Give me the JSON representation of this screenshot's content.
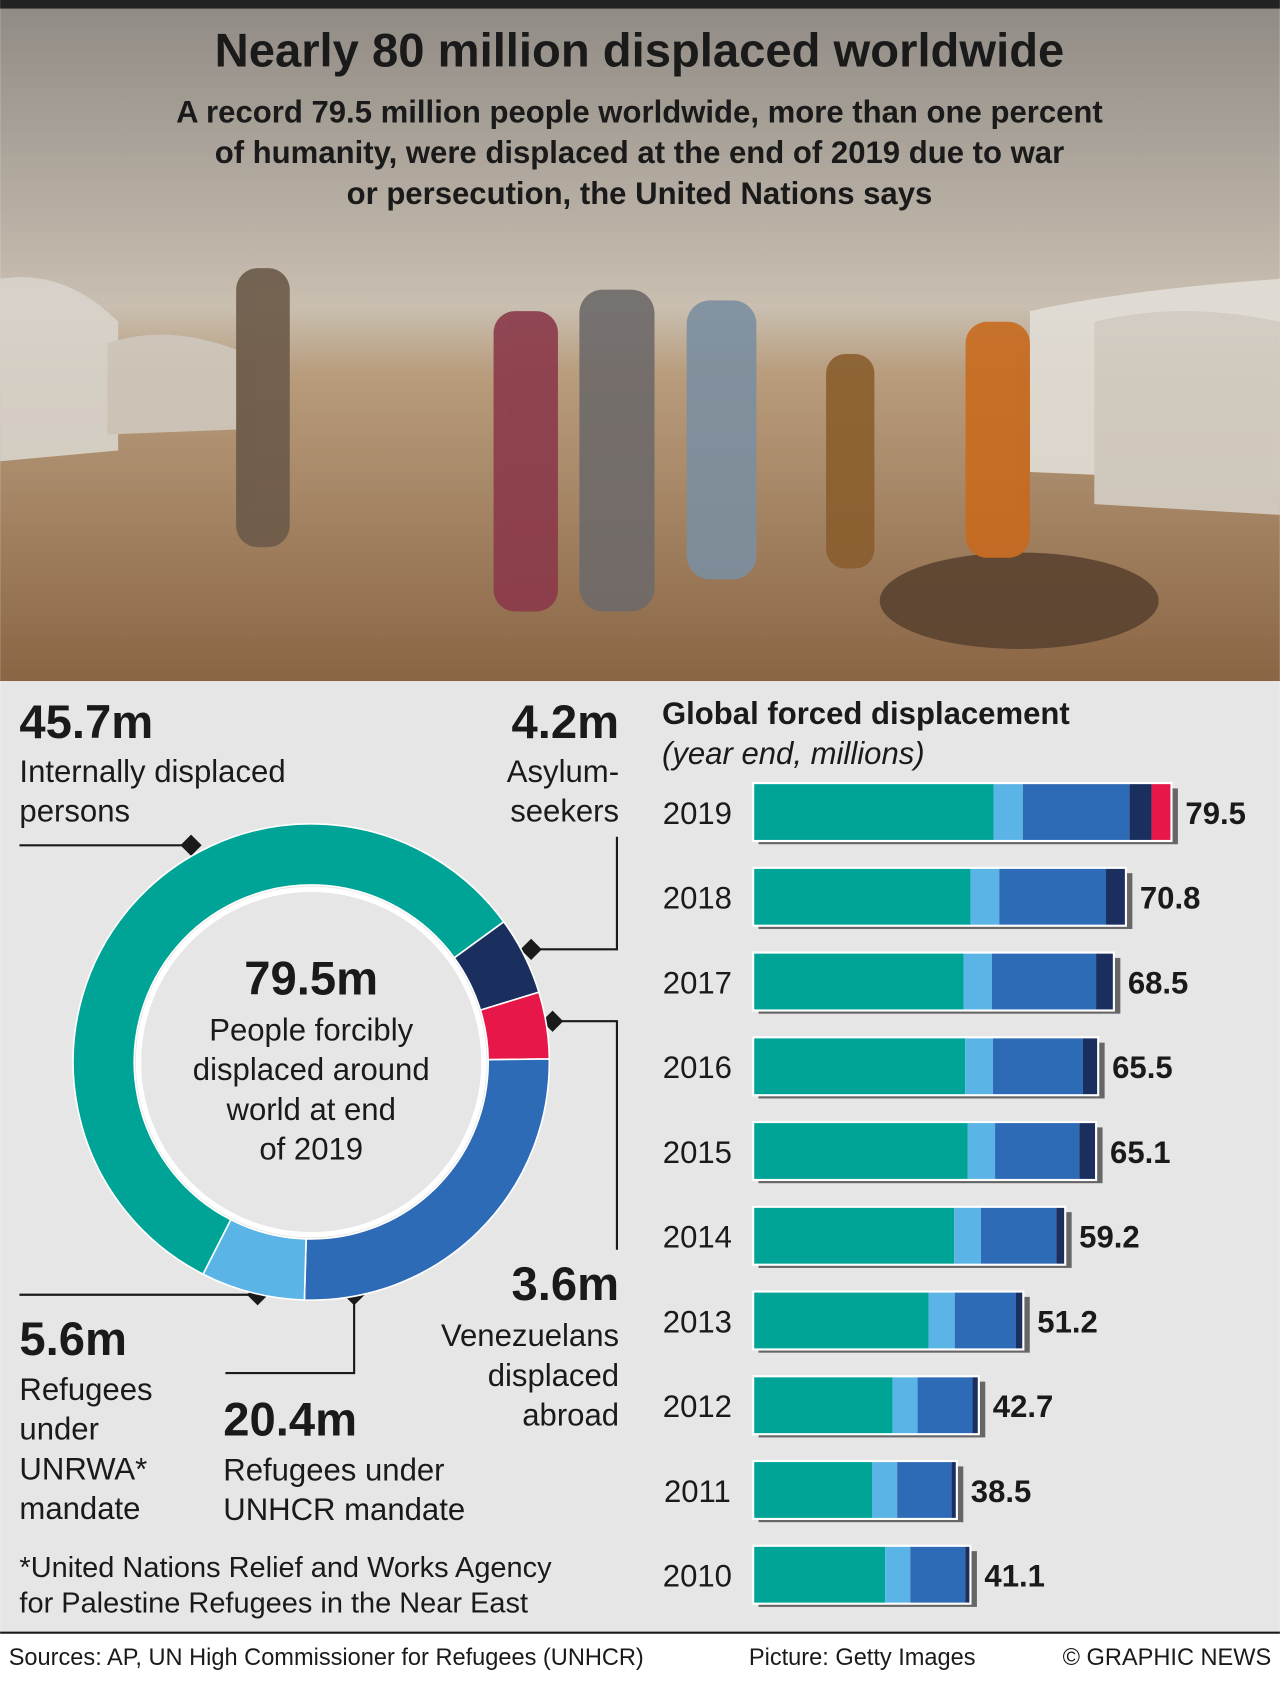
{
  "header": {
    "title": "Nearly 80 million displaced worldwide",
    "subtitle": [
      "A record 79.5 million people worldwide, more than one percent",
      "of humanity, were displaced at the end of 2019 due to war",
      "or persecution, the United Nations says"
    ]
  },
  "chart_data": [
    {
      "type": "donut",
      "center_value": {
        "value": 79.5,
        "label": "79.5m"
      },
      "center_text": [
        "People forcibly",
        "displaced around",
        "world at end",
        "of 2019"
      ],
      "categories": [
        [
          "Internally displaced",
          "persons"
        ],
        [
          "Asylum-",
          "seekers"
        ],
        [
          "Venezuelans",
          "displaced",
          "abroad"
        ],
        [
          "Refugees under",
          "UNHCR mandate"
        ],
        [
          "Refugees",
          "under",
          "UNRWA*",
          "mandate"
        ]
      ],
      "values": [
        45.7,
        4.2,
        3.6,
        20.4,
        5.6
      ],
      "value_labels": [
        "45.7m",
        "4.2m",
        "3.6m",
        "20.4m",
        "5.6m"
      ],
      "colors": [
        "#00a496",
        "#1b2f5e",
        "#e8174a",
        "#2e6bb7",
        "#5ab4e6"
      ]
    },
    {
      "type": "bar",
      "title": "Global forced displacement",
      "subtitle": "(year end, millions)",
      "categories": [
        "2019",
        "2018",
        "2017",
        "2016",
        "2015",
        "2014",
        "2013",
        "2012",
        "2011",
        "2010"
      ],
      "series": [
        {
          "color": "#00a496",
          "values": [
            45.7,
            41.3,
            40.0,
            40.3,
            40.8,
            38.2,
            33.3,
            26.4,
            22.5,
            25.0
          ]
        },
        {
          "color": "#5ab4e6",
          "values": [
            5.6,
            5.5,
            5.4,
            5.3,
            5.2,
            5.1,
            5.0,
            4.8,
            4.8,
            4.8
          ]
        },
        {
          "color": "#2e6bb7",
          "values": [
            20.4,
            20.4,
            19.9,
            17.2,
            16.1,
            14.4,
            11.7,
            10.5,
            10.4,
            10.5
          ]
        },
        {
          "color": "#1b2f5e",
          "values": [
            4.2,
            3.6,
            3.2,
            2.7,
            3.0,
            1.5,
            1.2,
            1.0,
            0.8,
            0.8
          ]
        },
        {
          "color": "#e8174a",
          "values": [
            3.6,
            0,
            0,
            0,
            0,
            0,
            0,
            0,
            0,
            0
          ]
        }
      ],
      "totals": [
        79.5,
        70.8,
        68.5,
        65.5,
        65.1,
        59.2,
        51.2,
        42.7,
        38.5,
        41.1
      ],
      "xlim": [
        0,
        80
      ]
    }
  ],
  "footnote": [
    "*United Nations Relief and Works Agency",
    "for Palestine Refugees in the Near East"
  ],
  "footer": {
    "sources": "Sources: AP, UN High Commissioner for Refugees (UNHCR)",
    "picture": "Picture: Getty Images",
    "credit": "© GRAPHIC NEWS"
  }
}
